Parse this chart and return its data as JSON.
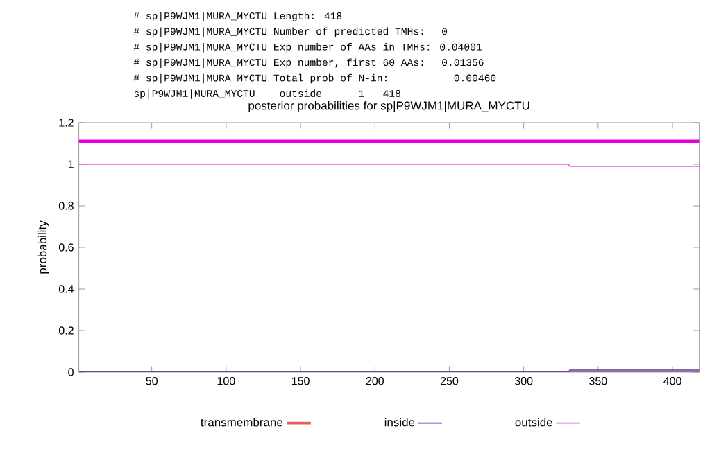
{
  "chart_data": {
    "type": "line",
    "title": "posterior probabilities for sp|P9WJM1|MURA_MYCTU",
    "ylabel": "probability",
    "annotations": [
      "# sp|P9WJM1|MURA_MYCTU Length: 418",
      "# sp|P9WJM1|MURA_MYCTU Number of predicted TMHs:  0",
      "# sp|P9WJM1|MURA_MYCTU Exp number of AAs in TMHs: 0.04001",
      "# sp|P9WJM1|MURA_MYCTU Exp number, first 60 AAs:  0.01356",
      "# sp|P9WJM1|MURA_MYCTU Total prob of N-in:        0.00460",
      "sp|P9WJM1|MURA_MYCTU    outside      1   418"
    ],
    "series": [
      {
        "name": "transmembrane",
        "color": "#e06060",
        "x": [
          1,
          418
        ],
        "values": [
          0,
          0
        ]
      },
      {
        "name": "inside",
        "color": "#4040c0",
        "x": [
          1,
          330,
          331,
          418
        ],
        "values": [
          0,
          0,
          0.01,
          0.01
        ]
      },
      {
        "name": "outside",
        "color": "#e060e0",
        "x": [
          1,
          330,
          331,
          418
        ],
        "values": [
          1,
          1,
          0.99,
          0.99
        ]
      },
      {
        "color": "#e000e0",
        "x": [
          1,
          418
        ],
        "values": [
          1.11,
          1.11
        ]
      }
    ],
    "xlim": [
      1,
      418
    ],
    "xticks": [
      50,
      100,
      150,
      200,
      250,
      300,
      350,
      400
    ],
    "ylim": [
      0,
      1.2
    ],
    "yticks": [
      0,
      0.2,
      0.4,
      0.6,
      0.8,
      1,
      1.2
    ],
    "grid": false,
    "legend": "bottom",
    "marker": "none",
    "line_style": "solid"
  }
}
